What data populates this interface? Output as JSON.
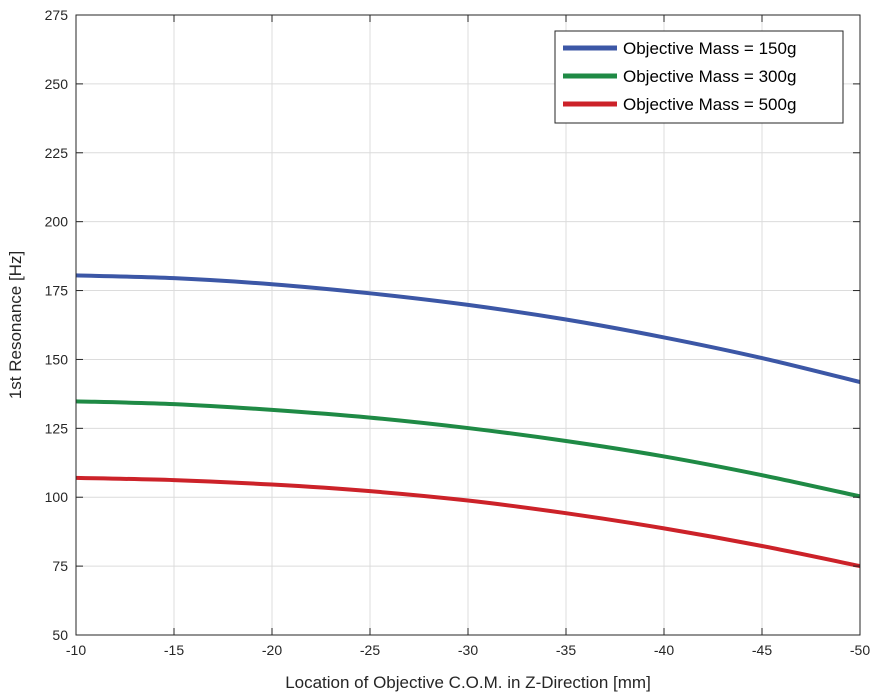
{
  "chart_data": {
    "type": "line",
    "title": "",
    "xlabel": "Location of Objective C.O.M. in Z-Direction [mm]",
    "ylabel": "1st Resonance [Hz]",
    "xlim": [
      -10,
      -50
    ],
    "ylim": [
      50,
      275
    ],
    "x_reversed": true,
    "xticks": [
      "-10",
      "-15",
      "-20",
      "-25",
      "-30",
      "-35",
      "-40",
      "-45",
      "-50"
    ],
    "yticks": [
      "50",
      "75",
      "100",
      "125",
      "150",
      "175",
      "200",
      "225",
      "250",
      "275"
    ],
    "grid": true,
    "legend_position": "top-right",
    "x": [
      -10,
      -15,
      -20,
      -25,
      -30,
      -35,
      -40,
      -45,
      -50
    ],
    "series": [
      {
        "name": "Objective Mass = 150g",
        "color": "#3c57a6",
        "values": [
          180.5,
          179.5,
          177.3,
          174.0,
          169.8,
          164.5,
          158.0,
          150.5,
          141.8
        ]
      },
      {
        "name": "Objective Mass = 300g",
        "color": "#1f8a45",
        "values": [
          134.8,
          133.8,
          131.7,
          128.9,
          125.1,
          120.4,
          114.8,
          108.0,
          100.3
        ]
      },
      {
        "name": "Objective Mass = 500g",
        "color": "#cc2229",
        "values": [
          107.0,
          106.2,
          104.6,
          102.2,
          98.8,
          94.2,
          88.7,
          82.3,
          75.0
        ]
      }
    ]
  }
}
